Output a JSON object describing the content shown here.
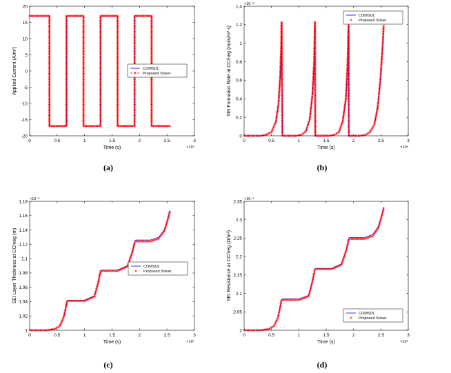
{
  "captions": [
    "(a)",
    "(b)",
    "(c)",
    "(d)"
  ],
  "chart_data": [
    {
      "type": "line",
      "panel": "(a)",
      "xlabel": "Time (s)",
      "ylabel": "Applied Current (A/m²)",
      "x_scale_label": "×10⁴",
      "xlim": [
        0,
        3
      ],
      "ylim": [
        -20,
        20
      ],
      "xticks": [
        "0",
        "0.5",
        "1",
        "1.5",
        "2",
        "2.5",
        "3"
      ],
      "yticks": [
        "-20",
        "-15",
        "-10",
        "-5",
        "0",
        "5",
        "10",
        "15",
        "20"
      ],
      "legend_position": "right",
      "series": [
        {
          "name": "COMSOL",
          "color": "#0000ff",
          "style": "solid",
          "x": [
            0,
            0.36,
            0.36,
            0.67,
            0.67,
            0.98,
            0.98,
            1.29,
            1.29,
            1.6,
            1.6,
            1.91,
            1.91,
            2.22,
            2.22,
            2.55
          ],
          "y": [
            17,
            17,
            -17,
            -17,
            17,
            17,
            -17,
            -17,
            17,
            17,
            -17,
            -17,
            17,
            17,
            -17,
            -17
          ]
        },
        {
          "name": "Proposed Solver",
          "color": "#ff0000",
          "style": "dashed-markers",
          "x": [
            0,
            0.36,
            0.36,
            0.67,
            0.67,
            0.98,
            0.98,
            1.29,
            1.29,
            1.6,
            1.6,
            1.91,
            1.91,
            2.22,
            2.22,
            2.55
          ],
          "y": [
            17,
            17,
            -17,
            -17,
            17,
            17,
            -17,
            -17,
            17,
            17,
            -17,
            -17,
            17,
            17,
            -17,
            -17
          ]
        }
      ]
    },
    {
      "type": "line",
      "panel": "(b)",
      "xlabel": "Time (s)",
      "ylabel": "SEI Formation Rate at CC/neg (mols/m² s)",
      "x_scale_label": "×10⁴",
      "y_scale_label": "×10⁻⁸",
      "xlim": [
        0,
        3
      ],
      "ylim": [
        0,
        1.4
      ],
      "xticks": [
        "0",
        "0.5",
        "1",
        "1.5",
        "2",
        "2.5",
        "3"
      ],
      "yticks": [
        "0",
        "0.2",
        "0.4",
        "0.6",
        "0.8",
        "1",
        "1.2",
        "1.4"
      ],
      "legend_position": "top-right",
      "series": [
        {
          "name": "COMSOL",
          "color": "#0000ff",
          "style": "solid",
          "x": [
            0,
            0.3,
            0.4,
            0.5,
            0.58,
            0.63,
            0.66,
            0.68,
            0.685,
            0.7,
            0.8,
            0.95,
            1.05,
            1.13,
            1.2,
            1.25,
            1.28,
            1.295,
            1.3,
            1.32,
            1.4,
            1.55,
            1.65,
            1.73,
            1.8,
            1.86,
            1.89,
            1.91,
            1.915,
            1.93,
            2.0,
            2.12,
            2.22,
            2.3,
            2.38,
            2.44,
            2.49,
            2.53,
            2.55
          ],
          "y": [
            0,
            0,
            0.01,
            0.04,
            0.15,
            0.35,
            0.65,
            1.0,
            1.22,
            0,
            0,
            0,
            0.01,
            0.05,
            0.18,
            0.45,
            0.8,
            1.17,
            0,
            0,
            0,
            0,
            0.01,
            0.04,
            0.15,
            0.4,
            0.75,
            1.17,
            0,
            0,
            0,
            0,
            0.01,
            0.04,
            0.12,
            0.3,
            0.6,
            0.95,
            1.17
          ]
        },
        {
          "name": "Proposed Solver",
          "color": "#ff0000",
          "style": "markers",
          "x": [
            0,
            0.3,
            0.4,
            0.5,
            0.58,
            0.63,
            0.66,
            0.68,
            0.685,
            0.7,
            0.8,
            0.95,
            1.05,
            1.13,
            1.2,
            1.25,
            1.28,
            1.295,
            1.3,
            1.32,
            1.4,
            1.55,
            1.65,
            1.73,
            1.8,
            1.86,
            1.89,
            1.91,
            1.915,
            1.93,
            2.0,
            2.12,
            2.22,
            2.3,
            2.38,
            2.44,
            2.49,
            2.53,
            2.55
          ],
          "y": [
            0,
            0,
            0.01,
            0.04,
            0.15,
            0.35,
            0.65,
            1.0,
            1.23,
            0,
            0,
            0,
            0.01,
            0.05,
            0.18,
            0.45,
            0.8,
            1.23,
            0,
            0,
            0,
            0,
            0.01,
            0.04,
            0.15,
            0.4,
            0.75,
            1.2,
            0,
            0,
            0,
            0,
            0.01,
            0.04,
            0.12,
            0.3,
            0.6,
            0.95,
            1.19
          ]
        }
      ]
    },
    {
      "type": "line",
      "panel": "(c)",
      "xlabel": "Time (s)",
      "ylabel": "SEI Layer Thickness at CC/neg (m)",
      "x_scale_label": "×10⁴",
      "y_scale_label": "×10⁻⁹",
      "xlim": [
        0,
        3
      ],
      "ylim": [
        1,
        1.18
      ],
      "xticks": [
        "0",
        "0.5",
        "1",
        "1.5",
        "2",
        "2.5",
        "3"
      ],
      "yticks": [
        "1",
        "1.02",
        "1.04",
        "1.06",
        "1.08",
        "1.1",
        "1.12",
        "1.14",
        "1.16",
        "1.18"
      ],
      "legend_position": "right",
      "series": [
        {
          "name": "COMSOL",
          "color": "#0000ff",
          "style": "solid",
          "x": [
            0,
            0.3,
            0.45,
            0.55,
            0.62,
            0.66,
            0.68,
            0.7,
            1.0,
            1.18,
            1.25,
            1.29,
            1.31,
            1.6,
            1.78,
            1.87,
            1.91,
            1.93,
            2.2,
            2.35,
            2.45,
            2.51,
            2.55
          ],
          "y": [
            1.0,
            1.0,
            1.0015,
            1.006,
            1.018,
            1.032,
            1.041,
            1.042,
            1.042,
            1.048,
            1.068,
            1.083,
            1.084,
            1.084,
            1.09,
            1.11,
            1.124,
            1.126,
            1.126,
            1.13,
            1.14,
            1.155,
            1.167
          ]
        },
        {
          "name": "Proposed Solver",
          "color": "#ff0000",
          "style": "markers",
          "x": [
            0,
            0.3,
            0.45,
            0.55,
            0.62,
            0.66,
            0.68,
            0.7,
            1.0,
            1.18,
            1.25,
            1.29,
            1.31,
            1.6,
            1.78,
            1.87,
            1.91,
            1.93,
            2.2,
            2.35,
            2.45,
            2.51,
            2.55
          ],
          "y": [
            1.0,
            1.0,
            1.0015,
            1.006,
            1.018,
            1.032,
            1.04,
            1.041,
            1.041,
            1.047,
            1.067,
            1.082,
            1.083,
            1.083,
            1.089,
            1.109,
            1.122,
            1.124,
            1.124,
            1.128,
            1.138,
            1.153,
            1.165
          ]
        }
      ]
    },
    {
      "type": "line",
      "panel": "(d)",
      "xlabel": "Time (s)",
      "ylabel": "SEI Resistance at CC/neg (Ω/m²)",
      "x_scale_label": "×10⁴",
      "y_scale_label": "×10⁻⁴",
      "xlim": [
        0,
        3
      ],
      "ylim": [
        2,
        2.35
      ],
      "xticks": [
        "0",
        "0.5",
        "1",
        "1.5",
        "2",
        "2.5",
        "3"
      ],
      "yticks": [
        "2",
        "2.05",
        "2.1",
        "2.15",
        "2.2",
        "2.25",
        "2.3",
        "2.35"
      ],
      "legend_position": "bottom-right",
      "series": [
        {
          "name": "COMSOL",
          "color": "#0000ff",
          "style": "solid",
          "x": [
            0,
            0.3,
            0.45,
            0.55,
            0.62,
            0.66,
            0.68,
            0.7,
            1.0,
            1.18,
            1.25,
            1.29,
            1.31,
            1.6,
            1.78,
            1.87,
            1.91,
            1.93,
            2.2,
            2.35,
            2.45,
            2.51,
            2.55
          ],
          "y": [
            2.0,
            2.0,
            2.003,
            2.012,
            2.035,
            2.065,
            2.082,
            2.085,
            2.085,
            2.095,
            2.135,
            2.165,
            2.168,
            2.168,
            2.18,
            2.22,
            2.248,
            2.252,
            2.252,
            2.26,
            2.28,
            2.31,
            2.335
          ]
        },
        {
          "name": "Proposed Solver",
          "color": "#ff0000",
          "style": "markers",
          "x": [
            0,
            0.3,
            0.45,
            0.55,
            0.62,
            0.66,
            0.68,
            0.7,
            1.0,
            1.18,
            1.25,
            1.29,
            1.31,
            1.6,
            1.78,
            1.87,
            1.91,
            1.93,
            2.2,
            2.35,
            2.45,
            2.51,
            2.55
          ],
          "y": [
            2.0,
            2.0,
            2.003,
            2.012,
            2.035,
            2.063,
            2.08,
            2.082,
            2.082,
            2.092,
            2.132,
            2.163,
            2.166,
            2.166,
            2.178,
            2.218,
            2.245,
            2.248,
            2.248,
            2.256,
            2.276,
            2.306,
            2.33
          ]
        }
      ]
    }
  ]
}
